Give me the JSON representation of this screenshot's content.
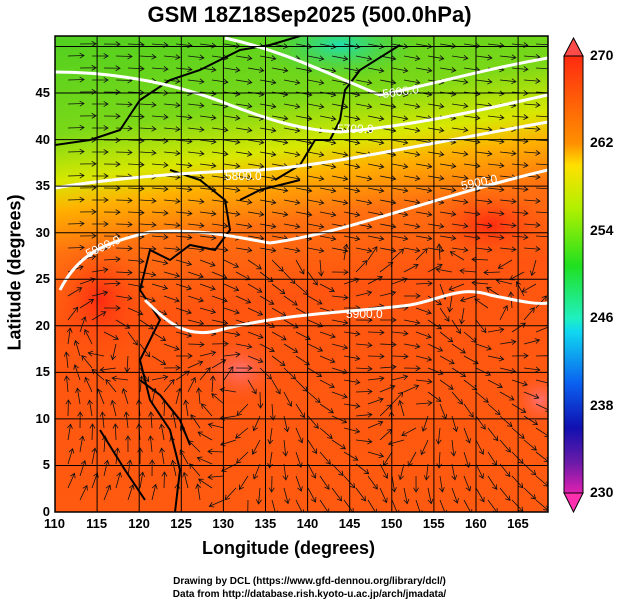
{
  "title": "GSM 18Z18Sep2025 (500.0hPa)",
  "xlabel": "Longitude (degrees)",
  "ylabel": "Latitude  (degrees)",
  "x_ticks": [
    "110",
    "115",
    "120",
    "125",
    "130",
    "135",
    "140",
    "145",
    "150",
    "155",
    "160",
    "165"
  ],
  "y_ticks": [
    "0",
    "5",
    "10",
    "15",
    "20",
    "25",
    "30",
    "35",
    "40",
    "45"
  ],
  "colorbar": {
    "ticks": [
      "270",
      "262",
      "254",
      "246",
      "238",
      "230"
    ],
    "range": [
      230,
      270
    ],
    "colors": [
      "#ff2a8c",
      "#8a1fbf",
      "#1010b0",
      "#0a60f0",
      "#10d8f0",
      "#20e8a0",
      "#20e020",
      "#b0f000",
      "#ffe000",
      "#ff8a00",
      "#ff3010"
    ]
  },
  "contours": {
    "labels": [
      "5600.0",
      "5700.0",
      "5800.0",
      "5900.0",
      "5900.0",
      "5900.0"
    ],
    "color": "#ffffff"
  },
  "footer": {
    "line1": "Drawing by DCL (https://www.gfd-dennou.org/library/dcl/)",
    "line2": "Data from http://database.rish.kyoto-u.ac.jp/arch/jmadata/"
  }
}
